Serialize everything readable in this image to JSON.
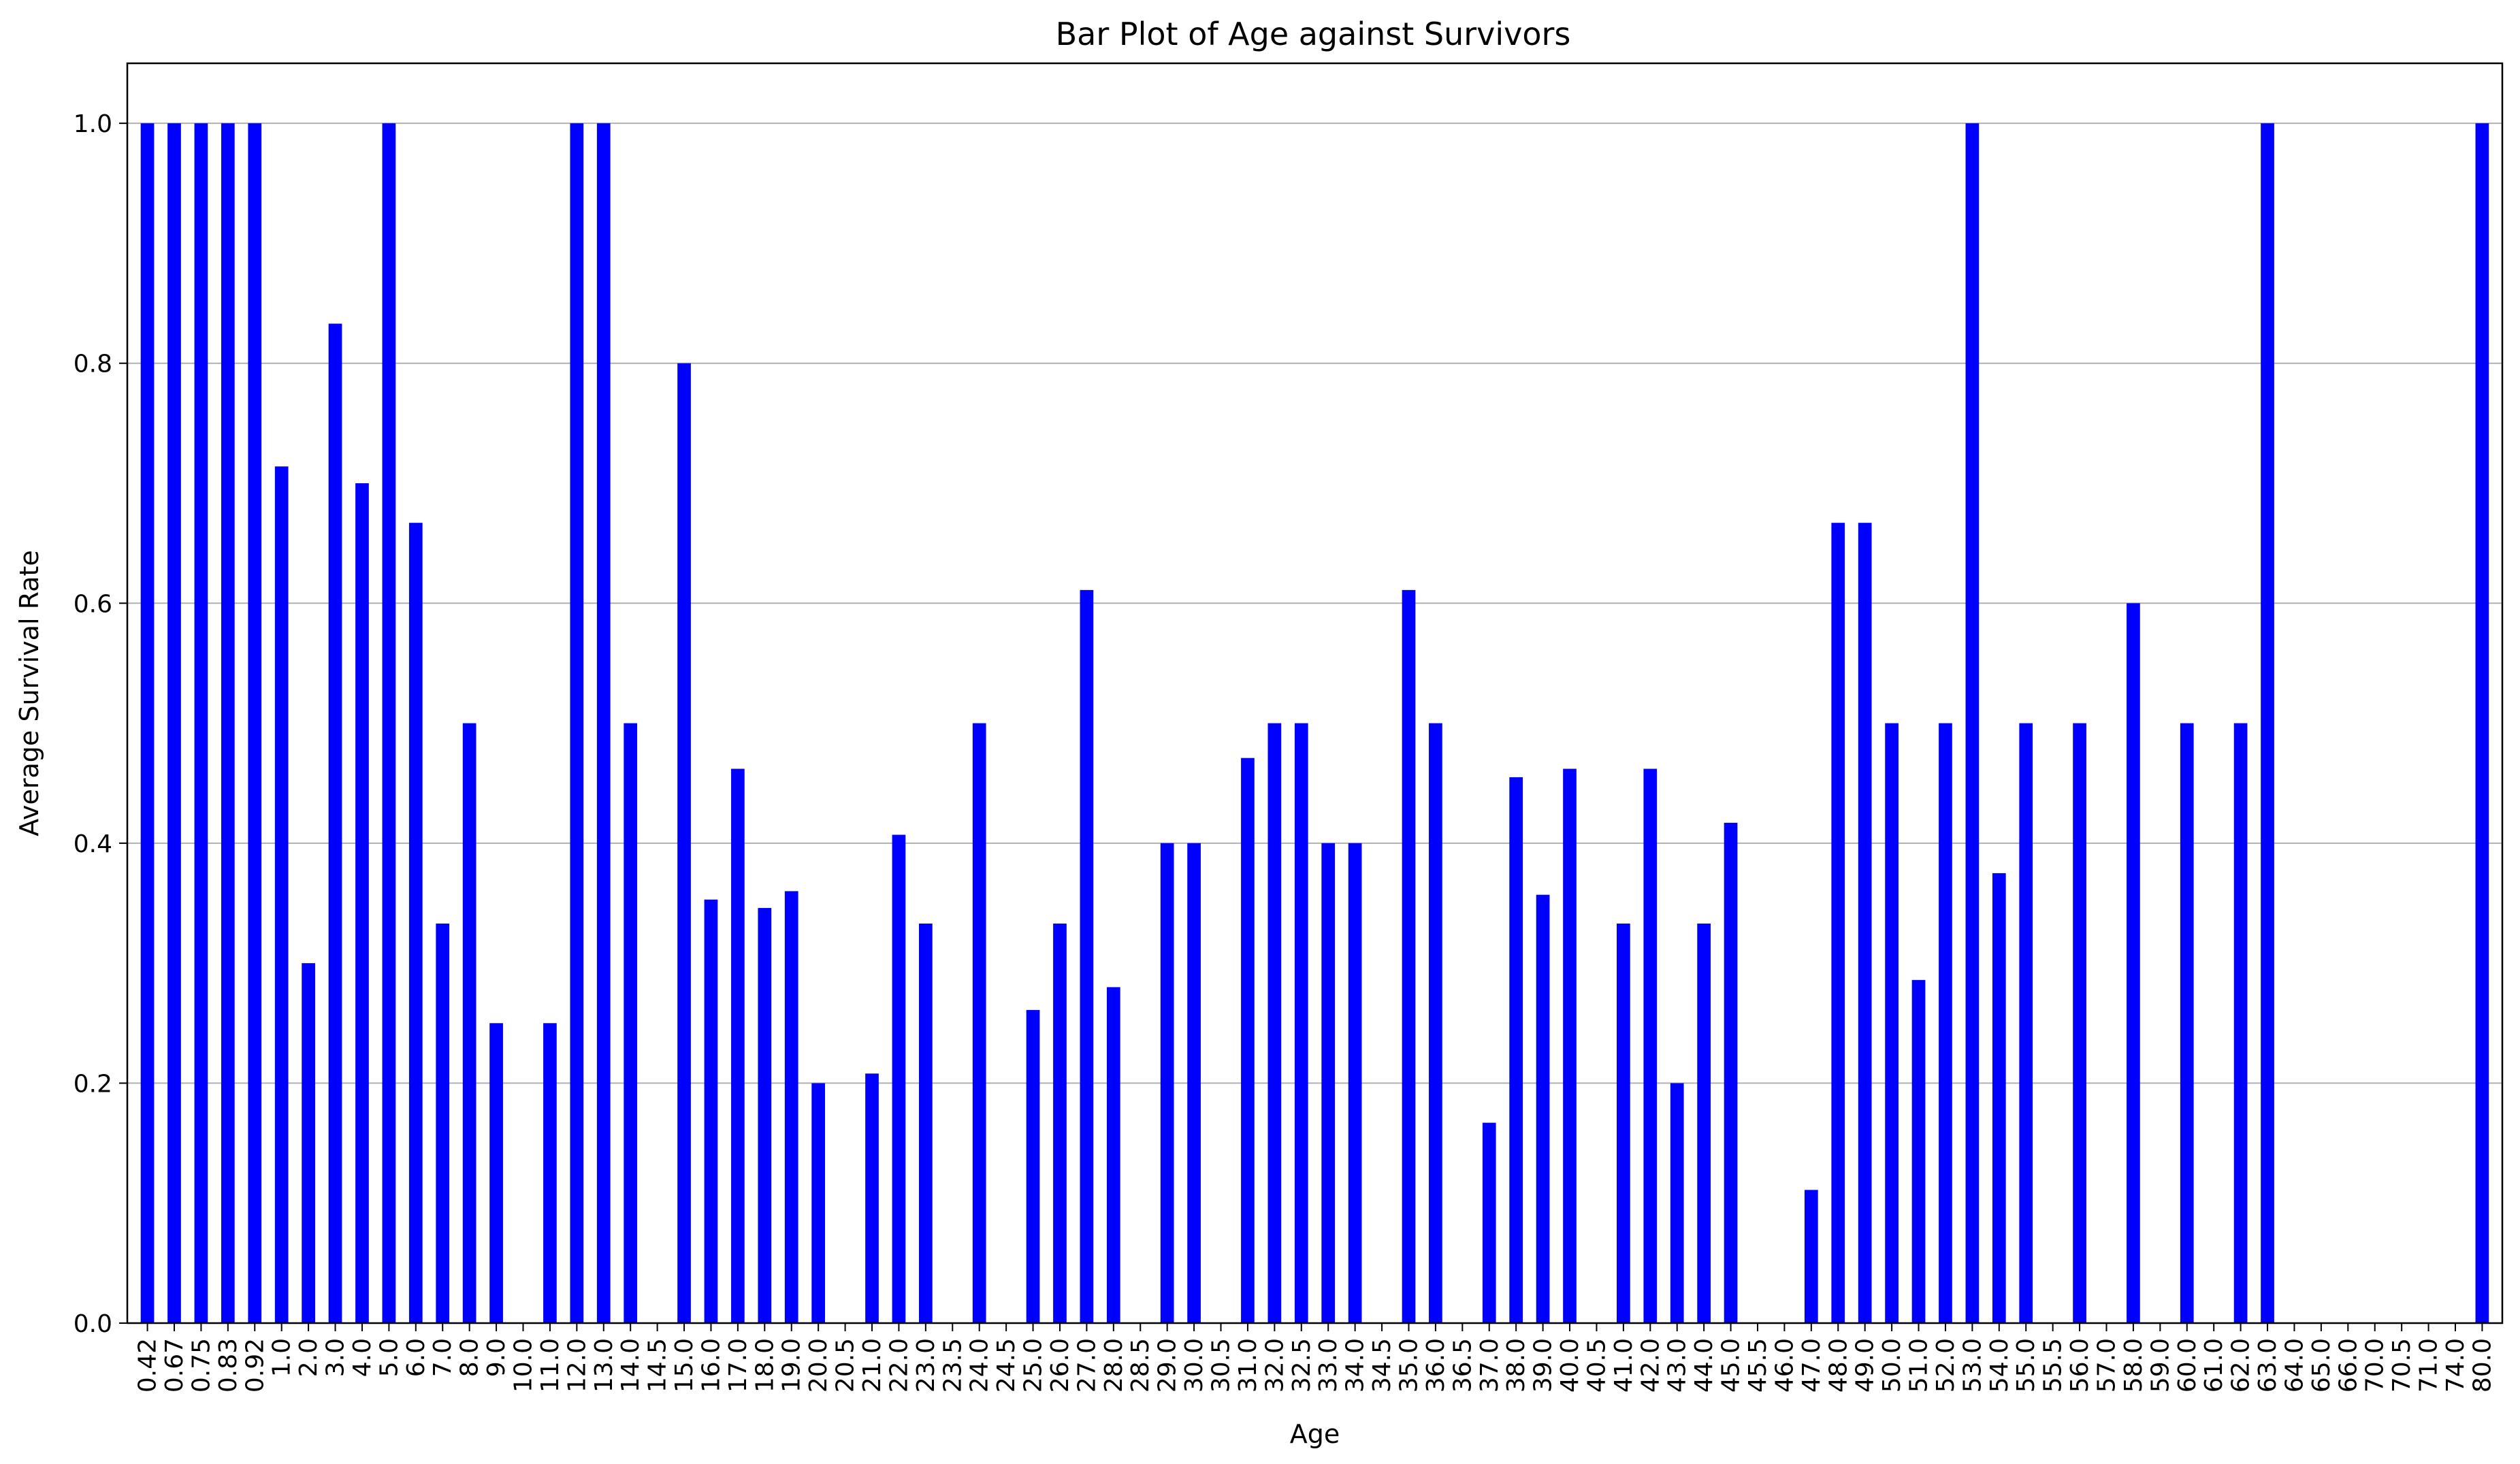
{
  "chart_data": {
    "type": "bar",
    "title": "Bar Plot of Age against Survivors",
    "xlabel": "Age",
    "ylabel": "Average Survival Rate",
    "ylim": [
      0,
      1.05
    ],
    "yticks": [
      "0.0",
      "0.2",
      "0.4",
      "0.6",
      "0.8",
      "1.0"
    ],
    "grid": "horizontal",
    "bar_color": "#0000ff",
    "categories": [
      "0.42",
      "0.67",
      "0.75",
      "0.83",
      "0.92",
      "1.0",
      "2.0",
      "3.0",
      "4.0",
      "5.0",
      "6.0",
      "7.0",
      "8.0",
      "9.0",
      "10.0",
      "11.0",
      "12.0",
      "13.0",
      "14.0",
      "14.5",
      "15.0",
      "16.0",
      "17.0",
      "18.0",
      "19.0",
      "20.0",
      "20.5",
      "21.0",
      "22.0",
      "23.0",
      "23.5",
      "24.0",
      "24.5",
      "25.0",
      "26.0",
      "27.0",
      "28.0",
      "28.5",
      "29.0",
      "30.0",
      "30.5",
      "31.0",
      "32.0",
      "32.5",
      "33.0",
      "34.0",
      "34.5",
      "35.0",
      "36.0",
      "36.5",
      "37.0",
      "38.0",
      "39.0",
      "40.0",
      "40.5",
      "41.0",
      "42.0",
      "43.0",
      "44.0",
      "45.0",
      "45.5",
      "46.0",
      "47.0",
      "48.0",
      "49.0",
      "50.0",
      "51.0",
      "52.0",
      "53.0",
      "54.0",
      "55.0",
      "55.5",
      "56.0",
      "57.0",
      "58.0",
      "59.0",
      "60.0",
      "61.0",
      "62.0",
      "63.0",
      "64.0",
      "65.0",
      "66.0",
      "70.0",
      "70.5",
      "71.0",
      "74.0",
      "80.0"
    ],
    "values": [
      1.0,
      1.0,
      1.0,
      1.0,
      1.0,
      0.714,
      0.3,
      0.833,
      0.7,
      1.0,
      0.667,
      0.333,
      0.5,
      0.25,
      0.0,
      0.25,
      1.0,
      1.0,
      0.5,
      0.0,
      0.8,
      0.353,
      0.462,
      0.346,
      0.36,
      0.2,
      0.0,
      0.208,
      0.407,
      0.333,
      0.0,
      0.5,
      0.0,
      0.261,
      0.333,
      0.611,
      0.28,
      0.0,
      0.4,
      0.4,
      0.0,
      0.471,
      0.5,
      0.5,
      0.4,
      0.4,
      0.0,
      0.611,
      0.5,
      0.0,
      0.167,
      0.455,
      0.357,
      0.462,
      0.0,
      0.333,
      0.462,
      0.2,
      0.333,
      0.417,
      0.0,
      0.0,
      0.111,
      0.667,
      0.667,
      0.5,
      0.286,
      0.5,
      1.0,
      0.375,
      0.5,
      0.0,
      0.5,
      0.0,
      0.6,
      0.0,
      0.5,
      0.0,
      0.5,
      1.0,
      0.0,
      0.0,
      0.0,
      0.0,
      0.0,
      0.0,
      0.0,
      1.0
    ]
  }
}
